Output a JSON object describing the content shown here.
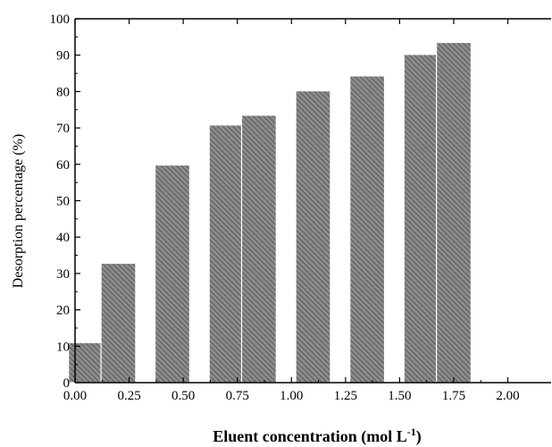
{
  "chart_data": {
    "type": "bar",
    "xlabel": "Eluent concentration (mol L",
    "xlabel_sup": "-1",
    "xlabel_end": ")",
    "ylabel": "Desorption percentage (%)",
    "xlim": [
      0,
      2.2
    ],
    "ylim": [
      0,
      100
    ],
    "x_ticks": [
      0,
      0.25,
      0.5,
      0.75,
      1.0,
      1.25,
      1.5,
      1.75,
      2.0
    ],
    "x_tick_labels": [
      "0.00",
      "0.25",
      "0.50",
      "0.75",
      "1.00",
      "1.25",
      "1.50",
      "1.75",
      "2.00"
    ],
    "y_ticks": [
      0,
      10,
      20,
      30,
      40,
      50,
      60,
      70,
      80,
      90,
      100
    ],
    "y_tick_labels": [
      "0",
      "10",
      "20",
      "30",
      "40",
      "50",
      "60",
      "70",
      "80",
      "90",
      "100"
    ],
    "bar_width": 0.16,
    "x": [
      0.05,
      0.2,
      0.45,
      0.7,
      0.85,
      1.1,
      1.35,
      1.6,
      1.75
    ],
    "values": [
      11,
      32.8,
      59.8,
      70.8,
      73.5,
      80.2,
      84.3,
      90.2,
      93.5
    ],
    "bar_fill": "hatched-grey",
    "colors": {
      "bar_fill": "#8c8c8c",
      "hatch": "#4a4a4a",
      "axis": "#000000"
    },
    "grid": false
  }
}
